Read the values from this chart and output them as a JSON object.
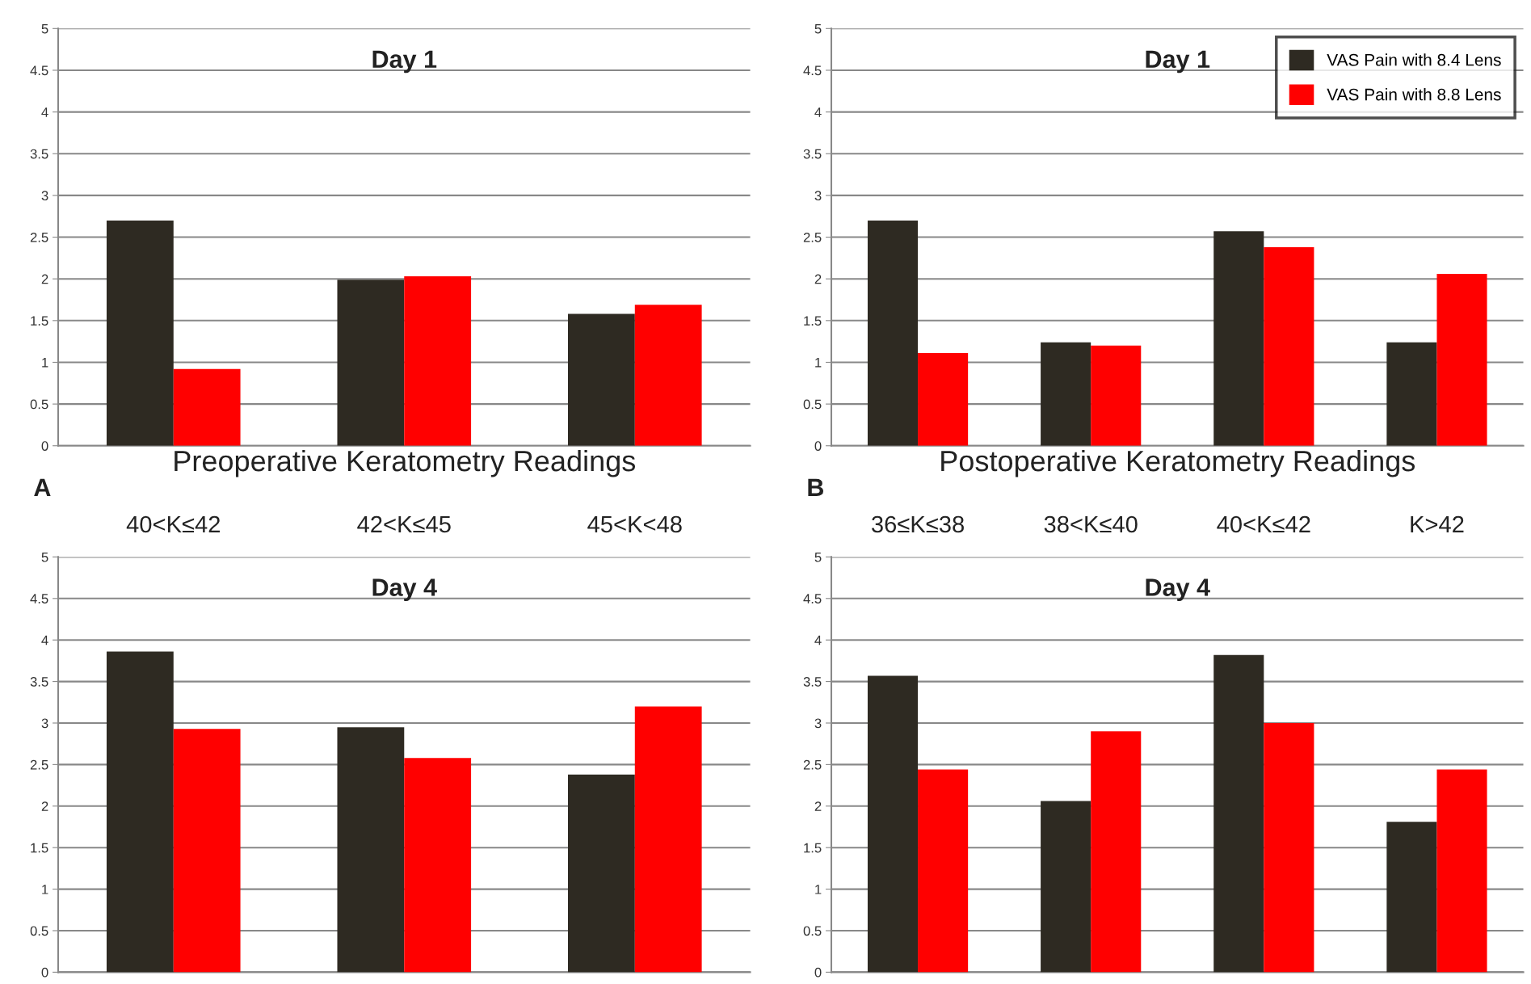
{
  "chart_data": [
    {
      "type": "bar",
      "title": "Day 1",
      "xlabel": "Preoperative Keratometry Readings",
      "annotations": [
        "A"
      ],
      "categories": [
        "40<K≤42",
        "42<K≤45",
        "45<K<48"
      ],
      "ylim": [
        0,
        5
      ],
      "yticks": [
        0,
        0.5,
        1,
        1.5,
        2,
        2.5,
        3,
        3.5,
        4,
        4.5,
        5
      ],
      "grid": "y",
      "series": [
        {
          "color": "#2e2a22",
          "values": [
            2.7,
            1.99,
            1.58
          ]
        },
        {
          "color": "#ff0000",
          "values": [
            0.92,
            2.03,
            1.69
          ]
        }
      ]
    },
    {
      "type": "bar",
      "title": "Day 1",
      "xlabel": "Postoperative Keratometry Readings",
      "annotations": [
        "B"
      ],
      "categories": [
        "36≤K≤38",
        "38<K≤40",
        "40<K≤42",
        "K>42"
      ],
      "ylim": [
        0,
        5
      ],
      "yticks": [
        0,
        0.5,
        1,
        1.5,
        2,
        2.5,
        3,
        3.5,
        4,
        4.5,
        5
      ],
      "grid": "y",
      "legend": "top right",
      "series": [
        {
          "name": "VAS Pain with 8.4 Lens",
          "color": "#2e2a22",
          "values": [
            2.7,
            1.24,
            2.57,
            1.24
          ]
        },
        {
          "name": "VAS Pain with 8.8 Lens",
          "color": "#ff0000",
          "values": [
            1.11,
            1.2,
            2.38,
            2.06
          ]
        }
      ]
    },
    {
      "type": "bar",
      "title": "Day 4",
      "categories": [
        null,
        null,
        null
      ],
      "tick_labels": "y",
      "ylim": [
        0,
        5
      ],
      "yticks": [
        0,
        0.5,
        1,
        1.5,
        2,
        2.5,
        3,
        3.5,
        4,
        4.5,
        5
      ],
      "grid": "y",
      "series": [
        {
          "color": "#2e2a22",
          "values": [
            3.86,
            2.95,
            2.38
          ]
        },
        {
          "color": "#ff0000",
          "values": [
            2.93,
            2.58,
            3.2
          ]
        }
      ]
    },
    {
      "type": "bar",
      "title": "Day 4",
      "categories": [
        null,
        null,
        null,
        null
      ],
      "tick_labels": "y",
      "ylim": [
        0,
        5
      ],
      "yticks": [
        0,
        0.5,
        1,
        1.5,
        2,
        2.5,
        3,
        3.5,
        4,
        4.5,
        5
      ],
      "grid": "y",
      "series": [
        {
          "color": "#2e2a22",
          "values": [
            3.57,
            2.06,
            3.82,
            1.81
          ]
        },
        {
          "color": "#ff0000",
          "values": [
            2.44,
            2.9,
            3.0,
            2.44
          ]
        }
      ]
    }
  ]
}
